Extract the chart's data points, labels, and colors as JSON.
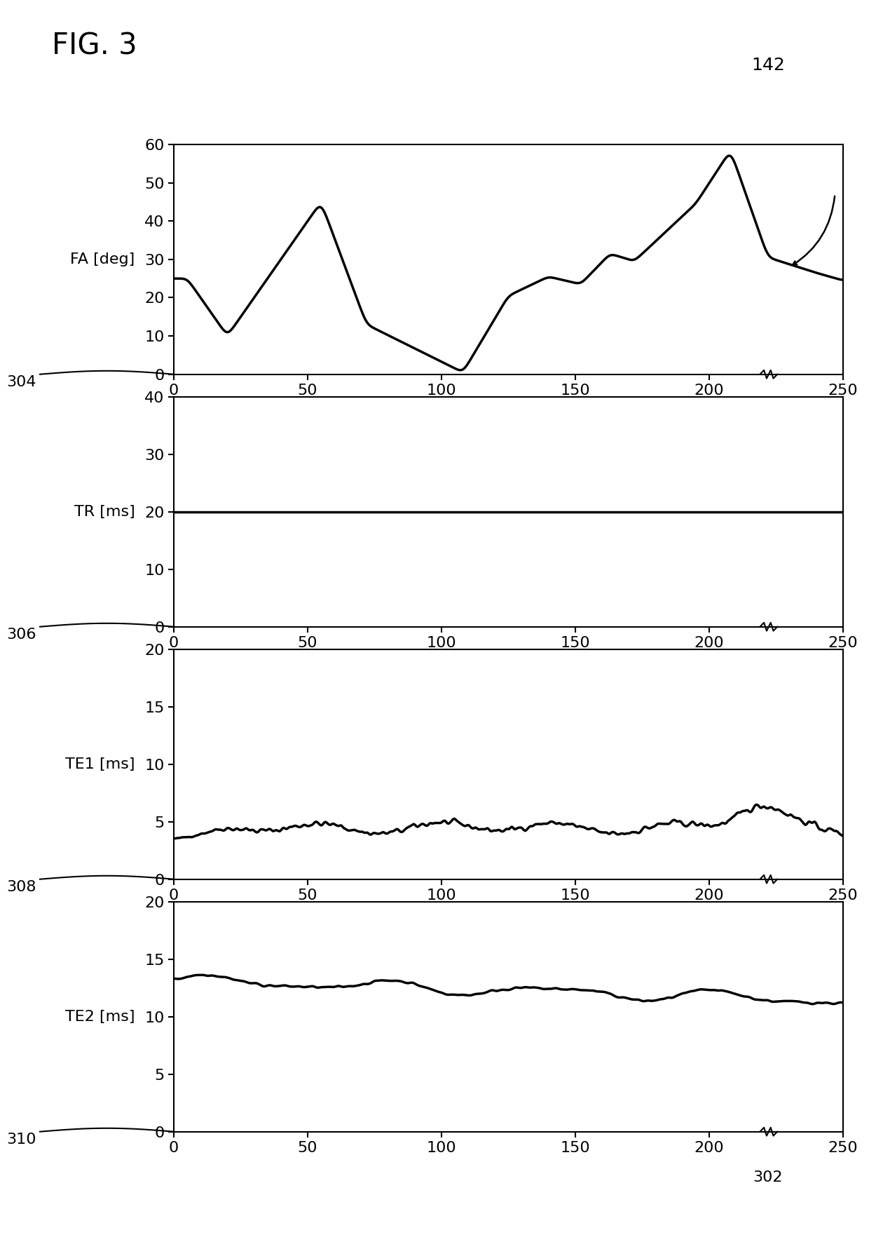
{
  "fig_label": "FIG. 3",
  "annotation_label": "142",
  "fig_width": 12.4,
  "fig_height": 17.91,
  "background_color": "#ffffff",
  "line_color": "#000000",
  "line_width": 2.5,
  "plots": [
    {
      "ylabel": "FA [deg]",
      "ylim": [
        0,
        60
      ],
      "yticks": [
        0,
        10,
        20,
        30,
        40,
        50,
        60
      ],
      "ref_label": "304",
      "signal_type": "fa"
    },
    {
      "ylabel": "TR [ms]",
      "ylim": [
        0,
        40
      ],
      "yticks": [
        0,
        10,
        20,
        30,
        40
      ],
      "ref_label": "306",
      "signal_type": "tr"
    },
    {
      "ylabel": "TE1 [ms]",
      "ylim": [
        0,
        20
      ],
      "yticks": [
        0,
        5,
        10,
        15,
        20
      ],
      "ref_label": "308",
      "signal_type": "te1"
    },
    {
      "ylabel": "TE2 [ms]",
      "ylim": [
        0,
        20
      ],
      "yticks": [
        0,
        5,
        10,
        15,
        20
      ],
      "ref_label": "310",
      "signal_type": "te2"
    }
  ],
  "xlim": [
    0,
    250
  ],
  "xticks": [
    0,
    50,
    100,
    150,
    200,
    250
  ],
  "n_points": 500
}
